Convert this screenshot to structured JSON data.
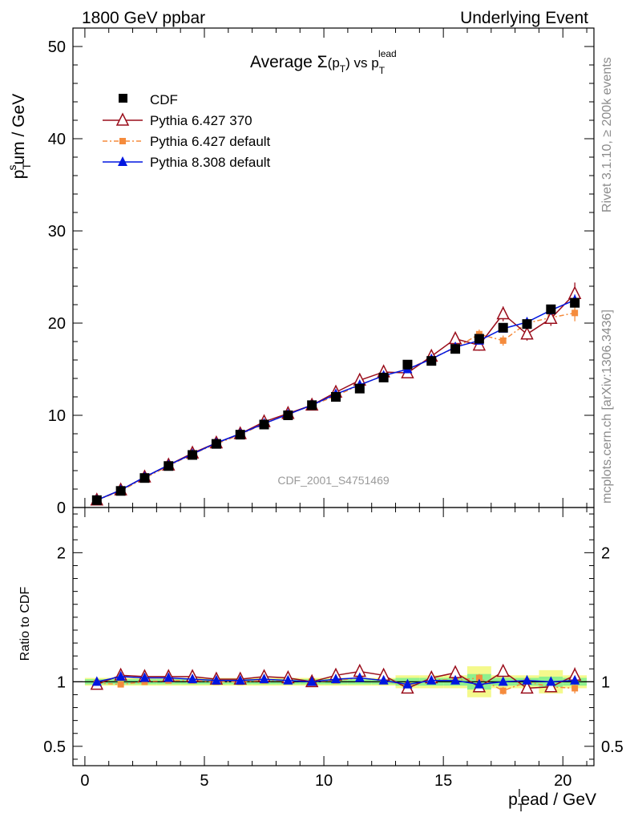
{
  "header": {
    "left": "1800 GeV ppbar",
    "right": "Underlying Event"
  },
  "side_labels": {
    "rivet": "Rivet 3.1.10, ≥ 200k events",
    "mcplots": "mcplots.cern.ch [arXiv:1306.3436]"
  },
  "chart_data": {
    "type": "line",
    "title": "Average Σ(p_T) vs p_T^lead",
    "title_parts": {
      "a": "Average ",
      "sigma": "Σ",
      "b": "(p",
      "sub": "T",
      "c": ") vs p",
      "sup": "lead",
      "sub2": "T"
    },
    "watermark": "CDF_2001_S4751469",
    "xlabel": "p_T^lead / GeV",
    "xlabel_parts": {
      "a": "p",
      "sub": "T",
      "sup": "l",
      "b": "ead / GeV"
    },
    "ylabel": "p_T^sum / GeV",
    "ylabel_parts": {
      "a": "p",
      "sub": "T",
      "sup": "s",
      "b": "um / GeV"
    },
    "ratio_ylabel": "Ratio to CDF",
    "xlim": [
      -0.5,
      21.3
    ],
    "ylim": [
      0,
      52
    ],
    "ratio_ylim": [
      0.35,
      2.35
    ],
    "xticks": [
      0,
      5,
      10,
      15,
      20
    ],
    "yticks": [
      0,
      10,
      20,
      30,
      40,
      50
    ],
    "ratio_yticks": [
      0.5,
      1,
      2
    ],
    "legend_position": "top-left",
    "x": [
      0.5,
      1.5,
      2.5,
      3.5,
      4.5,
      5.5,
      6.5,
      7.5,
      8.5,
      9.5,
      10.5,
      11.5,
      12.5,
      13.5,
      14.5,
      15.5,
      16.5,
      17.5,
      18.5,
      19.5,
      20.5
    ],
    "series": [
      {
        "name": "CDF",
        "style": "data",
        "color": "#000000",
        "values": [
          0.8,
          1.8,
          3.2,
          4.5,
          5.7,
          6.9,
          7.9,
          9.0,
          10.0,
          11.1,
          12.0,
          12.9,
          14.1,
          15.5,
          15.9,
          17.2,
          18.3,
          19.5,
          19.9,
          21.5,
          22.2
        ],
        "ratio": [
          1,
          1,
          1,
          1,
          1,
          1,
          1,
          1,
          1,
          1,
          1,
          1,
          1,
          1,
          1,
          1,
          1,
          1,
          1,
          1,
          1
        ],
        "band_inner": [
          0.02,
          0.02,
          0.02,
          0.02,
          0.02,
          0.02,
          0.02,
          0.02,
          0.02,
          0.02,
          0.02,
          0.02,
          0.02,
          0.03,
          0.03,
          0.03,
          0.06,
          0.03,
          0.03,
          0.04,
          0.03
        ],
        "band_outer": [
          0.03,
          0.03,
          0.03,
          0.03,
          0.03,
          0.03,
          0.03,
          0.03,
          0.03,
          0.03,
          0.03,
          0.03,
          0.03,
          0.05,
          0.05,
          0.05,
          0.12,
          0.05,
          0.05,
          0.09,
          0.05
        ]
      },
      {
        "name": "Pythia 6.427 370",
        "style": "open-triangle",
        "color": "#9a0d1b",
        "values": [
          0.8,
          1.9,
          3.3,
          4.6,
          5.9,
          7.0,
          8.0,
          9.3,
          10.2,
          11.1,
          12.5,
          13.8,
          14.7,
          14.6,
          16.4,
          18.3,
          17.6,
          21.0,
          18.8,
          20.5,
          23.2
        ],
        "ratio": [
          0.98,
          1.05,
          1.04,
          1.04,
          1.04,
          1.02,
          1.02,
          1.04,
          1.03,
          1.0,
          1.05,
          1.08,
          1.05,
          0.95,
          1.03,
          1.07,
          0.96,
          1.08,
          0.95,
          0.96,
          1.05
        ],
        "err": [
          0.05,
          0.08,
          0.08,
          0.1,
          0.1,
          0.12,
          0.12,
          0.15,
          0.15,
          0.18,
          0.2,
          0.25,
          0.3,
          0.4,
          0.45,
          0.55,
          0.6,
          0.8,
          0.7,
          0.8,
          1.2
        ],
        "ratio_err": [
          0.01,
          0.01,
          0.01,
          0.01,
          0.01,
          0.01,
          0.01,
          0.01,
          0.01,
          0.01,
          0.02,
          0.02,
          0.02,
          0.03,
          0.03,
          0.03,
          0.03,
          0.04,
          0.03,
          0.04,
          0.06
        ]
      },
      {
        "name": "Pythia 6.427 default",
        "style": "filled-square-dashdot",
        "color": "#f58b3c",
        "values": [
          0.8,
          1.8,
          3.2,
          4.5,
          5.8,
          6.9,
          7.9,
          9.1,
          10.1,
          11.1,
          12.1,
          13.3,
          14.3,
          15.0,
          16.2,
          17.3,
          18.8,
          18.1,
          20.0,
          20.6,
          21.1
        ],
        "ratio": [
          0.99,
          0.98,
          1.0,
          1.01,
          1.01,
          1.0,
          1.0,
          1.01,
          1.01,
          1.0,
          1.01,
          1.03,
          1.01,
          0.97,
          1.02,
          1.01,
          1.03,
          0.93,
          1.0,
          0.96,
          0.95
        ],
        "err": [
          0.05,
          0.08,
          0.08,
          0.1,
          0.1,
          0.12,
          0.12,
          0.15,
          0.15,
          0.18,
          0.2,
          0.25,
          0.3,
          0.35,
          0.4,
          0.45,
          0.5,
          0.55,
          0.6,
          0.7,
          0.9
        ],
        "ratio_err": [
          0.01,
          0.01,
          0.01,
          0.01,
          0.01,
          0.01,
          0.01,
          0.01,
          0.01,
          0.01,
          0.01,
          0.02,
          0.02,
          0.02,
          0.02,
          0.03,
          0.03,
          0.03,
          0.03,
          0.03,
          0.04
        ]
      },
      {
        "name": "Pythia 8.308 default",
        "style": "filled-triangle",
        "color": "#0016e0",
        "values": [
          0.8,
          1.9,
          3.3,
          4.6,
          5.8,
          7.0,
          8.0,
          9.1,
          10.1,
          11.1,
          12.3,
          13.3,
          14.3,
          15.0,
          16.1,
          17.4,
          18.1,
          19.4,
          20.1,
          21.4,
          22.5
        ],
        "ratio": [
          1.0,
          1.04,
          1.03,
          1.03,
          1.02,
          1.01,
          1.01,
          1.02,
          1.01,
          1.0,
          1.02,
          1.03,
          1.01,
          0.98,
          1.01,
          1.01,
          0.98,
          1.0,
          1.01,
          1.0,
          1.01
        ],
        "err": [
          0.05,
          0.06,
          0.07,
          0.08,
          0.09,
          0.1,
          0.1,
          0.12,
          0.12,
          0.14,
          0.15,
          0.18,
          0.2,
          0.25,
          0.28,
          0.3,
          0.35,
          0.4,
          0.45,
          0.5,
          0.6
        ],
        "ratio_err": [
          0.01,
          0.01,
          0.01,
          0.01,
          0.01,
          0.01,
          0.01,
          0.01,
          0.01,
          0.01,
          0.01,
          0.01,
          0.01,
          0.02,
          0.02,
          0.02,
          0.02,
          0.02,
          0.02,
          0.02,
          0.03
        ]
      }
    ]
  }
}
